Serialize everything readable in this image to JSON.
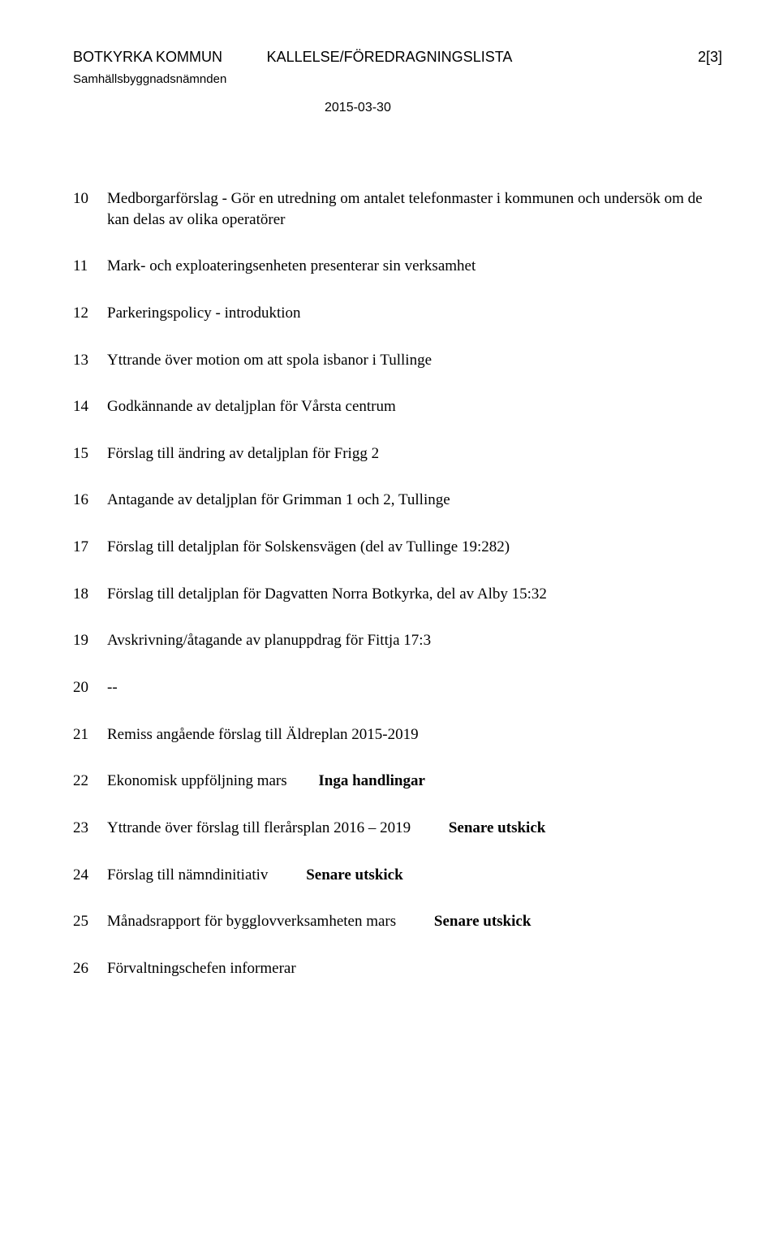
{
  "header": {
    "org": "BOTKYRKA KOMMUN",
    "docType": "KALLELSE/FÖREDRAGNINGSLISTA",
    "pageInfo": "2[3]",
    "committee": "Samhällsbyggnadsnämnden",
    "date": "2015-03-30"
  },
  "items": [
    {
      "num": "10",
      "text": "Medborgarförslag - Gör en utredning om antalet telefonmaster i kommunen och undersök om de kan delas av olika operatörer"
    },
    {
      "num": "11",
      "text": "Mark- och exploateringsenheten presenterar sin verksamhet"
    },
    {
      "num": "12",
      "text": "Parkeringspolicy - introduktion"
    },
    {
      "num": "13",
      "text": "Yttrande över motion om att spola isbanor i Tullinge"
    },
    {
      "num": "14",
      "text": "Godkännande av detaljplan för Vårsta centrum"
    },
    {
      "num": "15",
      "text": "Förslag till ändring av detaljplan för Frigg 2"
    },
    {
      "num": "16",
      "text": "Antagande av detaljplan för Grimman 1 och 2, Tullinge"
    },
    {
      "num": "17",
      "text": "Förslag till detaljplan för Solskensvägen (del av Tullinge 19:282)"
    },
    {
      "num": "18",
      "text": "Förslag till detaljplan för Dagvatten Norra Botkyrka, del av Alby 15:32"
    },
    {
      "num": "19",
      "text": "Avskrivning/åtagande av planuppdrag för Fittja 17:3"
    },
    {
      "num": "20",
      "text": "--"
    },
    {
      "num": "21",
      "text": "Remiss angående förslag till Äldreplan 2015-2019"
    },
    {
      "num": "22",
      "text": "Ekonomisk uppföljning mars",
      "note": "Inga handlingar"
    },
    {
      "num": "23",
      "text": "Yttrande över förslag till flerårsplan 2016 – 2019",
      "note": "Senare utskick"
    },
    {
      "num": "24",
      "text": "Förslag till nämndinitiativ",
      "note": "Senare utskick"
    },
    {
      "num": "25",
      "text": "Månadsrapport för bygglovverksamheten mars",
      "note": "Senare utskick"
    },
    {
      "num": "26",
      "text": "Förvaltningschefen informerar"
    }
  ]
}
